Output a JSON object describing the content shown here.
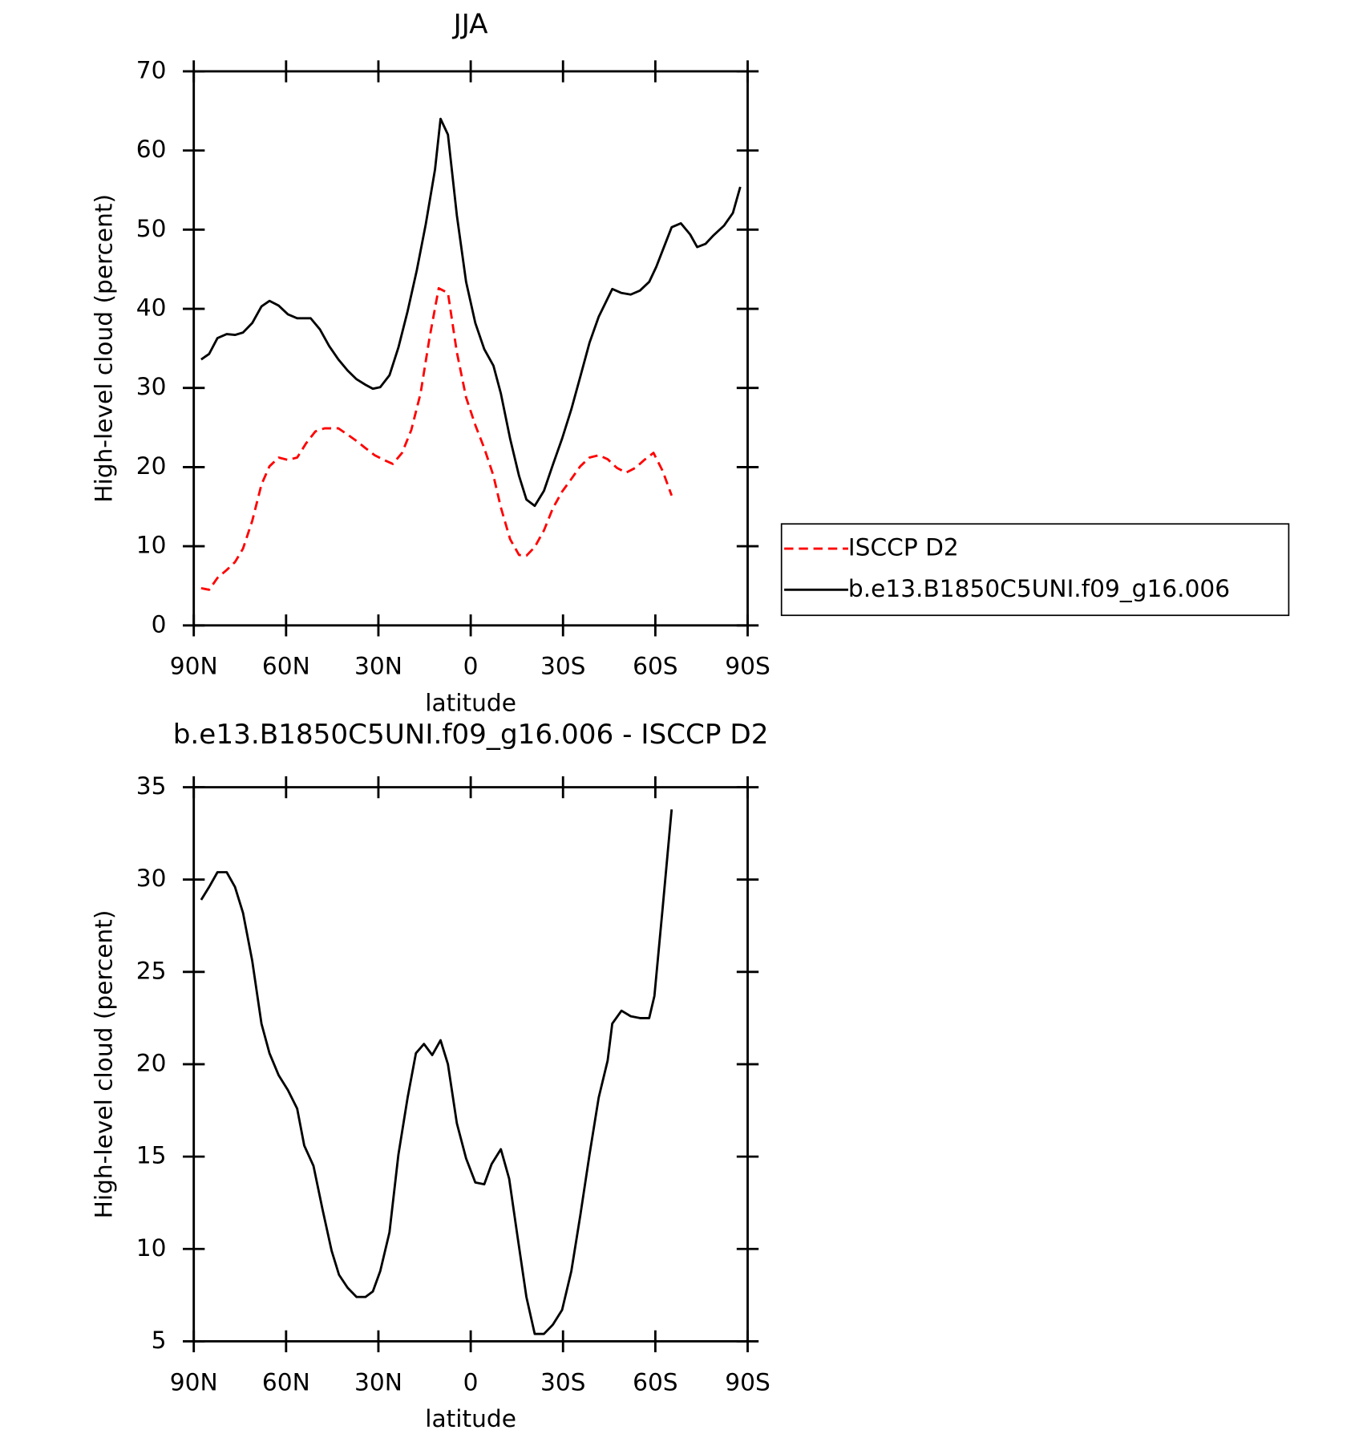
{
  "chart_data": [
    {
      "type": "line",
      "title": "JJA",
      "xlabel": "latitude",
      "ylabel": "High-level cloud (percent)",
      "xlim": [
        90,
        -90
      ],
      "xticks": [
        {
          "value": 90,
          "label": "90N"
        },
        {
          "value": 60,
          "label": "60N"
        },
        {
          "value": 30,
          "label": "30N"
        },
        0,
        {
          "value": -30,
          "label": "30S"
        },
        {
          "value": -60,
          "label": "60S"
        },
        {
          "value": -90,
          "label": "90S"
        }
      ],
      "ylim": [
        0,
        70
      ],
      "yticks": [
        0,
        10,
        20,
        30,
        40,
        50,
        60,
        70
      ],
      "legend": "outside right",
      "series": [
        {
          "name": "ISCCP D2",
          "color": "#ff0000",
          "dash": "dashed",
          "x": [
            87.6,
            85,
            82.3,
            79.3,
            76.6,
            74,
            71,
            68,
            65.4,
            62.4,
            59.4,
            56.4,
            53.5,
            50.5,
            47.5,
            43,
            40,
            37.1,
            34.2,
            31.2,
            28.2,
            25.3,
            22.3,
            19.3,
            16.3,
            13.4,
            10.4,
            7.4,
            4.5,
            1.5,
            -1.5,
            -4.4,
            -7.4,
            -9.8,
            -12.8,
            -15.7,
            -18.1,
            -20.8,
            -23.8,
            -26.7,
            -29.7,
            -32.7,
            -35.6,
            -38.6,
            -41.6,
            -44.5,
            -47.5,
            -50.5,
            -53.5,
            -56.4,
            -59.4,
            -62.4,
            -65.3
          ],
          "values": [
            4.7,
            4.5,
            6,
            7,
            8,
            9.7,
            13.2,
            17.8,
            20.1,
            21.2,
            20.9,
            21.2,
            23,
            24.5,
            24.9,
            24.9,
            24.1,
            23.3,
            22.4,
            21.5,
            20.9,
            20.4,
            21.8,
            24.7,
            29.3,
            36.3,
            42.6,
            42,
            34.5,
            28.8,
            25.3,
            22.4,
            18.9,
            14.9,
            10.9,
            8.9,
            8.8,
            9.9,
            12,
            14.8,
            16.9,
            18.5,
            20.1,
            21.2,
            21.5,
            21,
            19.9,
            19.3,
            19.9,
            20.9,
            21.8,
            19.5,
            16.4
          ]
        },
        {
          "name": "b.e13.B1850C5UNI.f09_g16.006",
          "color": "#000000",
          "dash": "solid",
          "x": [
            87.6,
            85,
            82.3,
            79.3,
            76.6,
            74,
            71,
            68,
            65.4,
            62.4,
            59.4,
            56.4,
            52,
            49,
            46,
            43,
            40,
            37.1,
            34.2,
            31.8,
            29.4,
            26.4,
            23.5,
            20.5,
            17.5,
            14.6,
            11.6,
            9.8,
            7.4,
            4.5,
            1.5,
            -1.5,
            -4.4,
            -7.4,
            -9.8,
            -12.8,
            -15.7,
            -18.1,
            -20.8,
            -23.8,
            -26.7,
            -29.7,
            -32.7,
            -35.6,
            -38.6,
            -41.6,
            -44.5,
            -46,
            -49,
            -52,
            -55,
            -58,
            -60.3,
            -63,
            -65.3,
            -68.3,
            -71.3,
            -73.6,
            -76.3,
            -78.7,
            -82.3,
            -85.2,
            -87.6
          ],
          "values": [
            33.6,
            34.3,
            36.3,
            36.8,
            36.7,
            37,
            38.2,
            40.3,
            41,
            40.4,
            39.3,
            38.8,
            38.8,
            37.4,
            35.3,
            33.6,
            32.2,
            31.1,
            30.4,
            29.9,
            30.1,
            31.6,
            35.1,
            39.7,
            44.9,
            50.7,
            57.6,
            64,
            62,
            51.8,
            43.4,
            38.2,
            34.9,
            32.8,
            29.3,
            23.6,
            18.9,
            15.9,
            15.1,
            17,
            20.3,
            23.6,
            27.3,
            31.4,
            35.7,
            39,
            41.3,
            42.5,
            42,
            41.8,
            42.3,
            43.4,
            45.3,
            48,
            50.3,
            50.8,
            49.4,
            47.8,
            48.2,
            49.2,
            50.5,
            52.1,
            55.4
          ]
        }
      ]
    },
    {
      "type": "line",
      "title": "b.e13.B1850C5UNI.f09_g16.006 - ISCCP D2",
      "xlabel": "latitude",
      "ylabel": "High-level cloud (percent)",
      "xlim": [
        90,
        -90
      ],
      "xticks": [
        {
          "value": 90,
          "label": "90N"
        },
        {
          "value": 60,
          "label": "60N"
        },
        {
          "value": 30,
          "label": "30N"
        },
        0,
        {
          "value": -30,
          "label": "30S"
        },
        {
          "value": -60,
          "label": "60S"
        },
        {
          "value": -90,
          "label": "90S"
        }
      ],
      "ylim": [
        5,
        35
      ],
      "yticks": [
        5,
        10,
        15,
        20,
        25,
        30,
        35
      ],
      "series": [
        {
          "color": "#000000",
          "dash": "solid",
          "x": [
            87.6,
            85,
            82.3,
            79.3,
            76.6,
            74,
            71,
            68,
            65.4,
            62.4,
            59.4,
            56.4,
            54.1,
            51.1,
            48.1,
            45.2,
            42.8,
            40,
            37.1,
            34.2,
            31.8,
            29.4,
            26.4,
            23.5,
            20.5,
            17.8,
            15.2,
            12.5,
            9.8,
            7.4,
            4.5,
            1.5,
            -1.5,
            -4.4,
            -6.8,
            -9.8,
            -12.5,
            -15.1,
            -18.1,
            -20.8,
            -23.8,
            -26.7,
            -29.7,
            -32.7,
            -35.6,
            -38.6,
            -41.6,
            -44.5,
            -46,
            -49,
            -52,
            -55,
            -58,
            -59.7,
            -62.4,
            -65.3
          ],
          "values": [
            28.9,
            29.6,
            30.4,
            30.4,
            29.6,
            28.2,
            25.6,
            22.2,
            20.6,
            19.4,
            18.6,
            17.6,
            15.6,
            14.5,
            12.1,
            9.9,
            8.6,
            7.9,
            7.4,
            7.4,
            7.7,
            8.8,
            10.9,
            15.1,
            18.2,
            20.6,
            21.1,
            20.5,
            21.3,
            20,
            16.8,
            14.9,
            13.6,
            13.5,
            14.6,
            15.4,
            13.8,
            10.8,
            7.4,
            5.4,
            5.4,
            5.9,
            6.7,
            8.8,
            11.8,
            15.1,
            18.2,
            20.2,
            22.2,
            22.9,
            22.6,
            22.5,
            22.5,
            23.7,
            28.5,
            33.8
          ]
        }
      ]
    }
  ]
}
